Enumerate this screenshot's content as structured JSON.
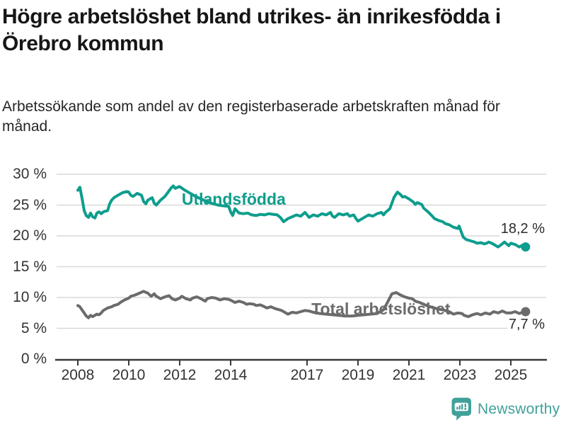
{
  "header": {
    "title": "Högre arbetslöshet bland utrikes- än inrikesfödda i Örebro kommun",
    "subtitle": "Arbetssökande som andel av den registerbaserade arbetskraften månad för månad."
  },
  "footer": {
    "brand": "Newsworthy"
  },
  "colors": {
    "series_utlandsfodda": "#0d9d8d",
    "series_total": "#6b6b6b",
    "grid": "#d9d9d9",
    "axis": "#383838",
    "tick_text": "#333333",
    "end_label_text": "#2b2b2b",
    "title_text": "#161616",
    "logo": "#41a19a"
  },
  "chart_data": {
    "type": "line",
    "title": "Högre arbetslöshet bland utrikes- än inrikesfödda i Örebro kommun",
    "subtitle": "Arbetssökande som andel av den registerbaserade arbetskraften månad för månad.",
    "grid": "horizontal",
    "x_axis": {
      "range": [
        2007.167,
        2026.389
      ],
      "ticks": [
        2008,
        2010,
        2012,
        2014,
        2017,
        2019,
        2021,
        2023,
        2025
      ]
    },
    "y_axis": {
      "range": [
        0,
        30
      ],
      "ticks": [
        0,
        5,
        10,
        15,
        20,
        25,
        30
      ],
      "tick_suffix": " %"
    },
    "series": [
      {
        "id": "utlandsfodda",
        "name": "Utlandsfödda",
        "color": "#0d9d8d",
        "label_pos": {
          "x": 2012.08,
          "y": 26.0
        },
        "end_label": "18,2 %",
        "end_value": 18.2,
        "end_label_side": "above",
        "points": [
          [
            2008.0,
            27.4
          ],
          [
            2008.08,
            27.9
          ],
          [
            2008.17,
            26.0
          ],
          [
            2008.25,
            24.1
          ],
          [
            2008.33,
            23.3
          ],
          [
            2008.42,
            23.0
          ],
          [
            2008.5,
            23.7
          ],
          [
            2008.58,
            23.1
          ],
          [
            2008.67,
            22.9
          ],
          [
            2008.75,
            23.7
          ],
          [
            2008.83,
            23.9
          ],
          [
            2008.92,
            23.6
          ],
          [
            2009.0,
            23.9
          ],
          [
            2009.08,
            24.0
          ],
          [
            2009.17,
            24.1
          ],
          [
            2009.25,
            25.2
          ],
          [
            2009.33,
            25.8
          ],
          [
            2009.42,
            26.2
          ],
          [
            2009.58,
            26.6
          ],
          [
            2009.75,
            27.0
          ],
          [
            2009.92,
            27.2
          ],
          [
            2010.0,
            27.1
          ],
          [
            2010.08,
            26.6
          ],
          [
            2010.17,
            26.4
          ],
          [
            2010.33,
            26.9
          ],
          [
            2010.5,
            26.6
          ],
          [
            2010.58,
            25.6
          ],
          [
            2010.67,
            25.2
          ],
          [
            2010.75,
            25.8
          ],
          [
            2010.92,
            26.2
          ],
          [
            2011.0,
            25.3
          ],
          [
            2011.08,
            25.0
          ],
          [
            2011.25,
            25.8
          ],
          [
            2011.42,
            26.4
          ],
          [
            2011.58,
            27.3
          ],
          [
            2011.67,
            27.8
          ],
          [
            2011.75,
            28.1
          ],
          [
            2011.83,
            27.7
          ],
          [
            2011.92,
            27.9
          ],
          [
            2012.0,
            28.0
          ],
          [
            2012.17,
            27.5
          ],
          [
            2012.33,
            27.1
          ],
          [
            2012.5,
            26.7
          ],
          [
            2012.67,
            26.3
          ],
          [
            2012.83,
            26.0
          ],
          [
            2013.0,
            25.7
          ],
          [
            2013.17,
            25.4
          ],
          [
            2013.33,
            25.2
          ],
          [
            2013.5,
            25.0
          ],
          [
            2013.67,
            24.9
          ],
          [
            2013.92,
            24.8
          ],
          [
            2014.0,
            23.9
          ],
          [
            2014.08,
            23.3
          ],
          [
            2014.17,
            24.4
          ],
          [
            2014.33,
            23.7
          ],
          [
            2014.5,
            23.6
          ],
          [
            2014.67,
            23.7
          ],
          [
            2014.83,
            23.4
          ],
          [
            2015.0,
            23.3
          ],
          [
            2015.17,
            23.5
          ],
          [
            2015.33,
            23.4
          ],
          [
            2015.5,
            23.6
          ],
          [
            2015.67,
            23.5
          ],
          [
            2015.83,
            23.4
          ],
          [
            2015.95,
            23.0
          ],
          [
            2016.08,
            22.3
          ],
          [
            2016.25,
            22.8
          ],
          [
            2016.42,
            23.1
          ],
          [
            2016.58,
            23.4
          ],
          [
            2016.75,
            23.2
          ],
          [
            2016.92,
            23.8
          ],
          [
            2017.08,
            23.0
          ],
          [
            2017.25,
            23.4
          ],
          [
            2017.42,
            23.2
          ],
          [
            2017.58,
            23.6
          ],
          [
            2017.75,
            23.4
          ],
          [
            2017.92,
            23.8
          ],
          [
            2018.0,
            23.2
          ],
          [
            2018.08,
            23.0
          ],
          [
            2018.25,
            23.6
          ],
          [
            2018.42,
            23.4
          ],
          [
            2018.58,
            23.6
          ],
          [
            2018.67,
            23.2
          ],
          [
            2018.83,
            23.4
          ],
          [
            2018.92,
            22.8
          ],
          [
            2019.0,
            22.4
          ],
          [
            2019.17,
            22.8
          ],
          [
            2019.33,
            23.2
          ],
          [
            2019.42,
            23.4
          ],
          [
            2019.58,
            23.2
          ],
          [
            2019.75,
            23.6
          ],
          [
            2019.92,
            23.8
          ],
          [
            2020.0,
            23.4
          ],
          [
            2020.08,
            23.8
          ],
          [
            2020.25,
            24.4
          ],
          [
            2020.33,
            25.3
          ],
          [
            2020.42,
            26.3
          ],
          [
            2020.55,
            27.1
          ],
          [
            2020.67,
            26.7
          ],
          [
            2020.75,
            26.3
          ],
          [
            2020.83,
            26.4
          ],
          [
            2020.92,
            26.2
          ],
          [
            2021.0,
            26.0
          ],
          [
            2021.17,
            25.5
          ],
          [
            2021.25,
            25.1
          ],
          [
            2021.33,
            25.4
          ],
          [
            2021.5,
            25.1
          ],
          [
            2021.58,
            24.5
          ],
          [
            2021.75,
            23.9
          ],
          [
            2021.92,
            23.2
          ],
          [
            2022.0,
            22.8
          ],
          [
            2022.17,
            22.5
          ],
          [
            2022.33,
            22.3
          ],
          [
            2022.42,
            22.0
          ],
          [
            2022.58,
            21.8
          ],
          [
            2022.75,
            21.4
          ],
          [
            2022.92,
            21.2
          ],
          [
            2022.97,
            21.6
          ],
          [
            2023.05,
            20.7
          ],
          [
            2023.13,
            19.8
          ],
          [
            2023.25,
            19.4
          ],
          [
            2023.42,
            19.2
          ],
          [
            2023.58,
            19.0
          ],
          [
            2023.67,
            18.8
          ],
          [
            2023.83,
            18.9
          ],
          [
            2023.95,
            18.7
          ],
          [
            2024.05,
            18.8
          ],
          [
            2024.13,
            19.0
          ],
          [
            2024.25,
            18.8
          ],
          [
            2024.42,
            18.4
          ],
          [
            2024.5,
            18.2
          ],
          [
            2024.63,
            18.6
          ],
          [
            2024.75,
            19.0
          ],
          [
            2024.92,
            18.4
          ],
          [
            2025.0,
            18.8
          ],
          [
            2025.17,
            18.6
          ],
          [
            2025.33,
            18.2
          ],
          [
            2025.46,
            18.5
          ],
          [
            2025.58,
            18.2
          ]
        ]
      },
      {
        "id": "total",
        "name": "Total arbetslöshet",
        "color": "#6b6b6b",
        "label_pos": {
          "x": 2017.17,
          "y": 8.2
        },
        "end_label": "7,7 %",
        "end_value": 7.7,
        "end_label_side": "below",
        "points": [
          [
            2008.0,
            8.7
          ],
          [
            2008.08,
            8.5
          ],
          [
            2008.25,
            7.5
          ],
          [
            2008.33,
            7.0
          ],
          [
            2008.42,
            6.7
          ],
          [
            2008.5,
            7.1
          ],
          [
            2008.58,
            6.9
          ],
          [
            2008.75,
            7.3
          ],
          [
            2008.83,
            7.2
          ],
          [
            2008.92,
            7.5
          ],
          [
            2009.0,
            7.9
          ],
          [
            2009.17,
            8.3
          ],
          [
            2009.33,
            8.5
          ],
          [
            2009.42,
            8.7
          ],
          [
            2009.58,
            8.9
          ],
          [
            2009.67,
            9.2
          ],
          [
            2009.83,
            9.6
          ],
          [
            2010.0,
            9.9
          ],
          [
            2010.08,
            10.2
          ],
          [
            2010.25,
            10.4
          ],
          [
            2010.42,
            10.7
          ],
          [
            2010.58,
            11.0
          ],
          [
            2010.75,
            10.7
          ],
          [
            2010.88,
            10.2
          ],
          [
            2011.0,
            10.6
          ],
          [
            2011.08,
            10.2
          ],
          [
            2011.25,
            9.8
          ],
          [
            2011.42,
            10.1
          ],
          [
            2011.58,
            10.3
          ],
          [
            2011.7,
            9.8
          ],
          [
            2011.83,
            9.6
          ],
          [
            2012.0,
            9.9
          ],
          [
            2012.08,
            10.2
          ],
          [
            2012.25,
            9.8
          ],
          [
            2012.42,
            9.6
          ],
          [
            2012.5,
            9.9
          ],
          [
            2012.67,
            10.1
          ],
          [
            2012.83,
            9.8
          ],
          [
            2013.0,
            9.4
          ],
          [
            2013.08,
            9.8
          ],
          [
            2013.25,
            10.0
          ],
          [
            2013.42,
            9.9
          ],
          [
            2013.58,
            9.6
          ],
          [
            2013.75,
            9.8
          ],
          [
            2013.92,
            9.7
          ],
          [
            2014.08,
            9.4
          ],
          [
            2014.17,
            9.2
          ],
          [
            2014.33,
            9.4
          ],
          [
            2014.5,
            9.2
          ],
          [
            2014.63,
            8.9
          ],
          [
            2014.75,
            9.0
          ],
          [
            2014.92,
            8.9
          ],
          [
            2015.0,
            8.7
          ],
          [
            2015.17,
            8.8
          ],
          [
            2015.33,
            8.5
          ],
          [
            2015.42,
            8.3
          ],
          [
            2015.58,
            8.5
          ],
          [
            2015.75,
            8.2
          ],
          [
            2015.92,
            8.0
          ],
          [
            2016.0,
            7.9
          ],
          [
            2016.25,
            7.3
          ],
          [
            2016.42,
            7.6
          ],
          [
            2016.58,
            7.5
          ],
          [
            2016.75,
            7.7
          ],
          [
            2016.92,
            7.9
          ],
          [
            2017.08,
            7.8
          ],
          [
            2017.25,
            7.6
          ],
          [
            2017.5,
            7.4
          ],
          [
            2017.75,
            7.3
          ],
          [
            2018.0,
            7.2
          ],
          [
            2018.25,
            7.1
          ],
          [
            2018.5,
            7.0
          ],
          [
            2018.75,
            7.0
          ],
          [
            2019.0,
            7.1
          ],
          [
            2019.25,
            7.2
          ],
          [
            2019.5,
            7.3
          ],
          [
            2019.75,
            7.4
          ],
          [
            2020.0,
            8.0
          ],
          [
            2020.17,
            9.3
          ],
          [
            2020.33,
            10.6
          ],
          [
            2020.5,
            10.8
          ],
          [
            2020.67,
            10.4
          ],
          [
            2020.83,
            10.1
          ],
          [
            2021.0,
            9.9
          ],
          [
            2021.13,
            9.8
          ],
          [
            2021.25,
            9.4
          ],
          [
            2021.42,
            9.2
          ],
          [
            2021.58,
            8.9
          ],
          [
            2021.75,
            8.6
          ],
          [
            2021.92,
            8.4
          ],
          [
            2022.0,
            8.3
          ],
          [
            2022.17,
            8.1
          ],
          [
            2022.33,
            8.0
          ],
          [
            2022.42,
            7.9
          ],
          [
            2022.58,
            7.7
          ],
          [
            2022.75,
            7.3
          ],
          [
            2022.92,
            7.5
          ],
          [
            2023.08,
            7.4
          ],
          [
            2023.17,
            7.1
          ],
          [
            2023.33,
            6.9
          ],
          [
            2023.5,
            7.2
          ],
          [
            2023.67,
            7.4
          ],
          [
            2023.83,
            7.2
          ],
          [
            2024.0,
            7.5
          ],
          [
            2024.17,
            7.3
          ],
          [
            2024.33,
            7.7
          ],
          [
            2024.5,
            7.5
          ],
          [
            2024.67,
            7.8
          ],
          [
            2024.83,
            7.5
          ],
          [
            2025.0,
            7.5
          ],
          [
            2025.17,
            7.7
          ],
          [
            2025.33,
            7.4
          ],
          [
            2025.46,
            7.6
          ],
          [
            2025.58,
            7.7
          ]
        ]
      }
    ]
  }
}
